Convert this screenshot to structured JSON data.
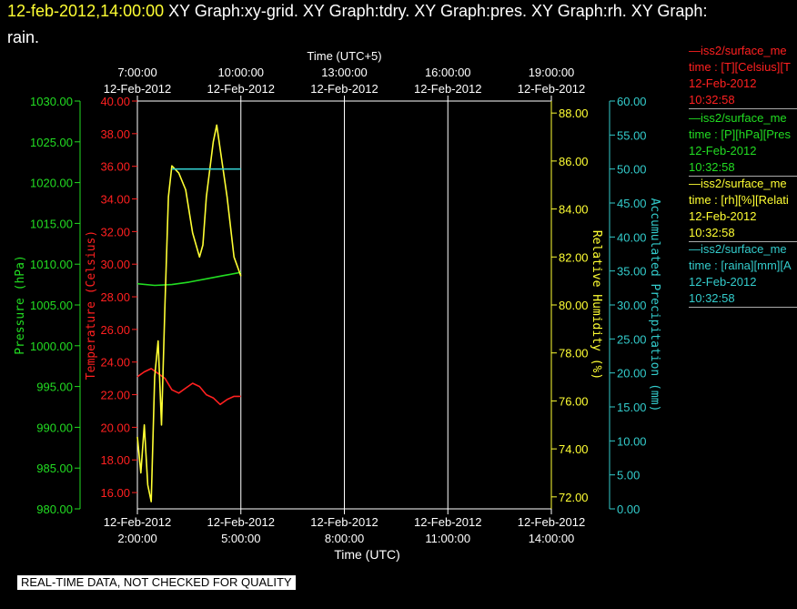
{
  "header": {
    "timestamp": "12-feb-2012,14:00:00",
    "title_rest": " XY Graph:xy-grid.  XY Graph:tdry.  XY Graph:pres.  XY Graph:rh.  XY Graph:",
    "title_wrap": "rain."
  },
  "notice": "REAL-TIME DATA, NOT CHECKED FOR QUALITY",
  "colors": {
    "temperature": "#ff2020",
    "pressure": "#22dd22",
    "humidity": "#ffff33",
    "precip": "#33cccc"
  },
  "legend": [
    {
      "id": "temp",
      "line1": "—iss2/surface_me",
      "line2": "time : [T][Celsius][T",
      "line3": "12-Feb-2012",
      "line4": "10:32:58",
      "color": "#ff2020"
    },
    {
      "id": "pres",
      "line1": "—iss2/surface_me",
      "line2": "time : [P][hPa][Pres",
      "line3": "12-Feb-2012",
      "line4": "10:32:58",
      "color": "#22dd22"
    },
    {
      "id": "rh",
      "line1": "—iss2/surface_me",
      "line2": "time : [rh][%][Relati",
      "line3": "12-Feb-2012",
      "line4": "10:32:58",
      "color": "#ffff33"
    },
    {
      "id": "rain",
      "line1": "—iss2/surface_me",
      "line2": "time : [raina][mm][A",
      "line3": "12-Feb-2012",
      "line4": "10:32:58",
      "color": "#33cccc"
    }
  ],
  "chart_data": {
    "type": "line",
    "x_bottom": {
      "title": "Time (UTC)",
      "ticks": [
        {
          "date": "12-Feb-2012",
          "time": "2:00:00",
          "hour": 2
        },
        {
          "date": "12-Feb-2012",
          "time": "5:00:00",
          "hour": 5
        },
        {
          "date": "12-Feb-2012",
          "time": "8:00:00",
          "hour": 8
        },
        {
          "date": "12-Feb-2012",
          "time": "11:00:00",
          "hour": 11
        },
        {
          "date": "12-Feb-2012",
          "time": "14:00:00",
          "hour": 14
        }
      ],
      "range": [
        2,
        14
      ]
    },
    "x_top": {
      "title": "Time (UTC+5)",
      "ticks": [
        {
          "time": "7:00:00",
          "date": "12-Feb-2012"
        },
        {
          "time": "10:00:00",
          "date": "12-Feb-2012"
        },
        {
          "time": "13:00:00",
          "date": "12-Feb-2012"
        },
        {
          "time": "16:00:00",
          "date": "12-Feb-2012"
        },
        {
          "time": "19:00:00",
          "date": "12-Feb-2012"
        }
      ]
    },
    "axes": {
      "pressure": {
        "label": "Pressure (hPa)",
        "range": [
          980,
          1030
        ],
        "ticks": [
          "980.00",
          "985.00",
          "990.00",
          "995.00",
          "1000.00",
          "1005.00",
          "1010.00",
          "1015.00",
          "1020.00",
          "1025.00",
          "1030.00"
        ]
      },
      "temperature": {
        "label": "Temperature (Celsius)",
        "range": [
          15,
          40
        ],
        "ticks": [
          "16.00",
          "18.00",
          "20.00",
          "22.00",
          "24.00",
          "26.00",
          "28.00",
          "30.00",
          "32.00",
          "34.00",
          "36.00",
          "38.00",
          "40.00"
        ]
      },
      "humidity": {
        "label": "Relative Humidity (%)",
        "range": [
          71.5,
          88.5
        ],
        "ticks": [
          "72.00",
          "74.00",
          "76.00",
          "78.00",
          "80.00",
          "82.00",
          "84.00",
          "86.00",
          "88.00"
        ]
      },
      "precip": {
        "label": "Accumulated Precipitation (mm)",
        "range": [
          0,
          60
        ],
        "ticks": [
          "0.00",
          "5.00",
          "10.00",
          "15.00",
          "20.00",
          "25.00",
          "30.00",
          "35.00",
          "40.00",
          "45.00",
          "50.00",
          "55.00",
          "60.00"
        ]
      }
    },
    "series": [
      {
        "name": "Temperature",
        "axis": "temperature",
        "x": [
          2.0,
          2.2,
          2.4,
          2.6,
          2.8,
          3.0,
          3.2,
          3.4,
          3.6,
          3.8,
          4.0,
          4.2,
          4.4,
          4.6,
          4.8,
          5.0
        ],
        "y": [
          23.1,
          23.4,
          23.6,
          23.3,
          23.0,
          22.3,
          22.1,
          22.4,
          22.7,
          22.5,
          22.0,
          21.8,
          21.4,
          21.7,
          21.9,
          21.9
        ]
      },
      {
        "name": "Pressure",
        "axis": "pressure",
        "x": [
          2.0,
          2.5,
          3.0,
          3.5,
          4.0,
          4.5,
          5.0
        ],
        "y": [
          1007.6,
          1007.4,
          1007.5,
          1007.8,
          1008.2,
          1008.6,
          1009.0
        ]
      },
      {
        "name": "Relative Humidity",
        "axis": "humidity",
        "x": [
          2.0,
          2.1,
          2.2,
          2.3,
          2.4,
          2.5,
          2.6,
          2.7,
          2.8,
          2.9,
          3.0,
          3.2,
          3.4,
          3.6,
          3.8,
          3.9,
          4.0,
          4.2,
          4.3,
          4.4,
          4.6,
          4.8,
          5.0
        ],
        "y": [
          74.5,
          73.0,
          75.0,
          72.5,
          71.8,
          77.0,
          78.5,
          75.0,
          80.0,
          84.5,
          85.8,
          85.5,
          84.8,
          83.0,
          82.0,
          82.5,
          84.5,
          86.8,
          87.5,
          86.5,
          84.5,
          82.0,
          81.2
        ]
      },
      {
        "name": "Accumulated Precipitation",
        "axis": "precip",
        "x": [
          3.0,
          5.0
        ],
        "y": [
          50.0,
          50.0
        ]
      }
    ]
  }
}
